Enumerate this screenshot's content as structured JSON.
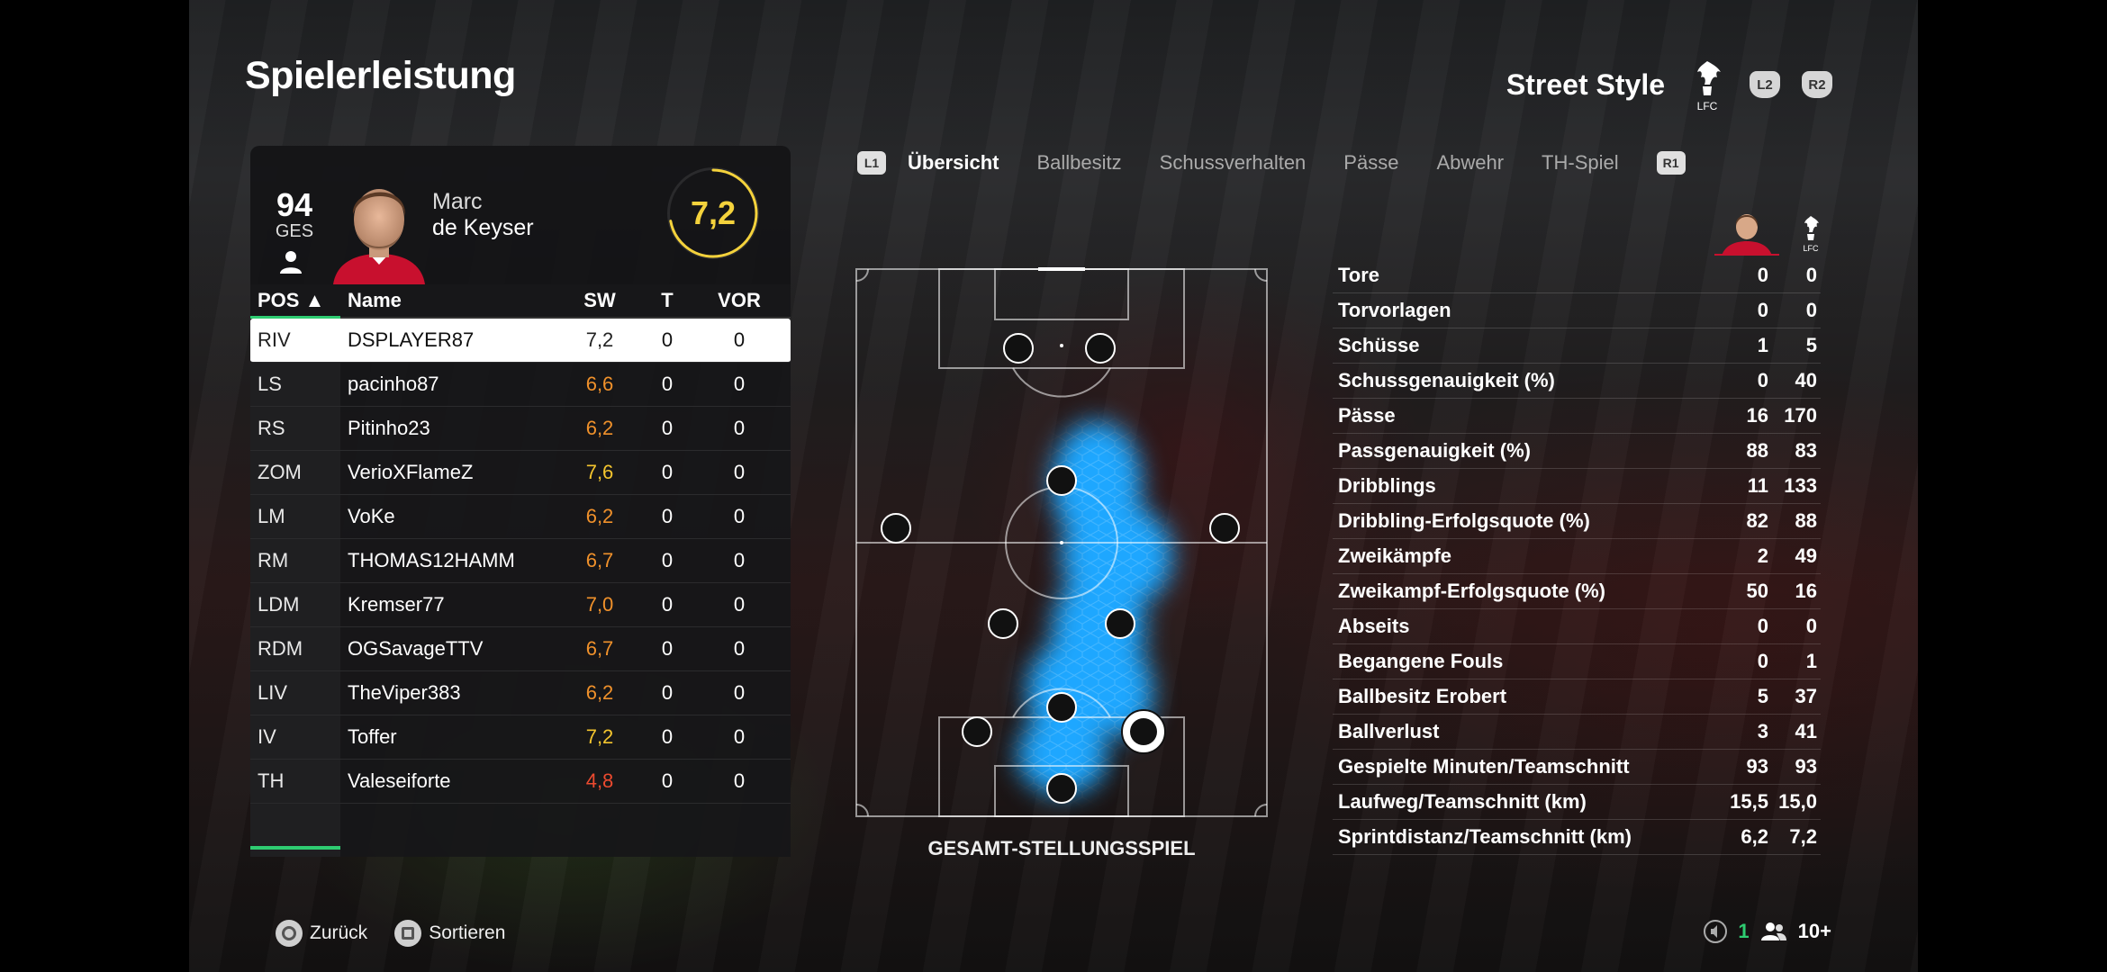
{
  "header": {
    "title": "Spielerleistung",
    "team_name": "Street Style",
    "crest_text": "LFC",
    "btn_l2": "L2",
    "btn_r2": "R2"
  },
  "player": {
    "overall": "94",
    "overall_label": "GES",
    "first_name": "Marc",
    "last_name": "de Keyser",
    "match_rating": "7,2",
    "rating_fraction": 0.72
  },
  "table": {
    "headers": {
      "pos": "POS ▲",
      "name": "Name",
      "sw": "SW",
      "t": "T",
      "vor": "VOR"
    },
    "rows": [
      {
        "pos": "RIV",
        "name": "DSPLAYER87",
        "sw": "7,2",
        "t": "0",
        "vor": "0",
        "color": "dark",
        "selected": true
      },
      {
        "pos": "LS",
        "name": "pacinho87",
        "sw": "6,6",
        "t": "0",
        "vor": "0",
        "color": "orange"
      },
      {
        "pos": "RS",
        "name": "Pitinho23",
        "sw": "6,2",
        "t": "0",
        "vor": "0",
        "color": "orange"
      },
      {
        "pos": "ZOM",
        "name": "VerioXFlameZ",
        "sw": "7,6",
        "t": "0",
        "vor": "0",
        "color": "yellow"
      },
      {
        "pos": "LM",
        "name": "VoKe",
        "sw": "6,2",
        "t": "0",
        "vor": "0",
        "color": "orange"
      },
      {
        "pos": "RM",
        "name": "THOMAS12HAMM",
        "sw": "6,7",
        "t": "0",
        "vor": "0",
        "color": "orange"
      },
      {
        "pos": "LDM",
        "name": "Kremser77",
        "sw": "7,0",
        "t": "0",
        "vor": "0",
        "color": "orange"
      },
      {
        "pos": "RDM",
        "name": "OGSavageTTV",
        "sw": "6,7",
        "t": "0",
        "vor": "0",
        "color": "orange"
      },
      {
        "pos": "LIV",
        "name": "TheViper383",
        "sw": "6,2",
        "t": "0",
        "vor": "0",
        "color": "orange"
      },
      {
        "pos": "IV",
        "name": "Toffer",
        "sw": "7,2",
        "t": "0",
        "vor": "0",
        "color": "yellow"
      },
      {
        "pos": "TH",
        "name": "Valeseiforte",
        "sw": "4,8",
        "t": "0",
        "vor": "0",
        "color": "red"
      }
    ]
  },
  "tabs": {
    "left_badge": "L1",
    "right_badge": "R1",
    "items": [
      "Übersicht",
      "Ballbesitz",
      "Schussverhalten",
      "Pässe",
      "Abwehr",
      "TH-Spiel"
    ],
    "active": 0
  },
  "pitch": {
    "caption": "GESAMT-STELLUNGSSPIEL"
  },
  "stats": [
    {
      "label": "Tore",
      "player": "0",
      "team": "0"
    },
    {
      "label": "Torvorlagen",
      "player": "0",
      "team": "0"
    },
    {
      "label": "Schüsse",
      "player": "1",
      "team": "5"
    },
    {
      "label": "Schussgenauigkeit (%)",
      "player": "0",
      "team": "40"
    },
    {
      "label": "Pässe",
      "player": "16",
      "team": "170"
    },
    {
      "label": "Passgenauigkeit (%)",
      "player": "88",
      "team": "83"
    },
    {
      "label": "Dribblings",
      "player": "11",
      "team": "133"
    },
    {
      "label": "Dribbling-Erfolgsquote (%)",
      "player": "82",
      "team": "88"
    },
    {
      "label": "Zweikämpfe",
      "player": "2",
      "team": "49"
    },
    {
      "label": "Zweikampf-Erfolgsquote (%)",
      "player": "50",
      "team": "16"
    },
    {
      "label": "Abseits",
      "player": "0",
      "team": "0"
    },
    {
      "label": "Begangene Fouls",
      "player": "0",
      "team": "1"
    },
    {
      "label": "Ballbesitz Erobert",
      "player": "5",
      "team": "37"
    },
    {
      "label": "Ballverlust",
      "player": "3",
      "team": "41"
    },
    {
      "label": "Gespielte Minuten/Teamschnitt",
      "player": "93",
      "team": "93"
    },
    {
      "label": "Laufweg/Teamschnitt (km)",
      "player": "15,5",
      "team": "15,0"
    },
    {
      "label": "Sprintdistanz/Teamschnitt (km)",
      "player": "6,2",
      "team": "7,2"
    }
  ],
  "footer": {
    "back_label": "Zurück",
    "sort_label": "Sortieren",
    "net_count": "1",
    "players_count": "10+"
  },
  "colors": {
    "rating_yellow": "#f4d23c",
    "accent_green": "#2ecc71",
    "heat_blue": "#1ea7ff"
  }
}
